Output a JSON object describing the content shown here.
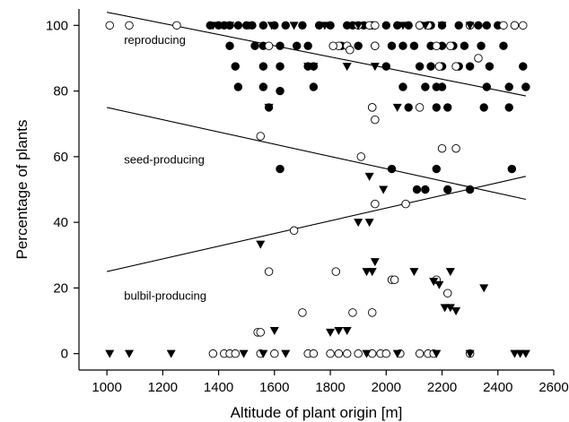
{
  "chart_data": {
    "type": "scatter",
    "title": "",
    "xlabel": "Altitude of plant origin [m]",
    "ylabel": "Percentage of plants",
    "xlim": [
      900,
      2600
    ],
    "ylim": [
      -5,
      105
    ],
    "xticks": [
      1000,
      1200,
      1400,
      1600,
      1800,
      2000,
      2200,
      2400,
      2600
    ],
    "yticks": [
      0,
      20,
      40,
      60,
      80,
      100
    ],
    "grid": false,
    "legend": "none",
    "series": [
      {
        "marker": "filled-circle",
        "color": "#000000",
        "x": [
          1370,
          1400,
          1420,
          1440,
          1470,
          1500,
          1520,
          1560,
          1600,
          1640,
          1700,
          1760,
          1800,
          1860,
          1880,
          1920,
          1950,
          2000,
          2040,
          2080,
          2120,
          2160,
          2200,
          2260,
          2300,
          2330,
          2360,
          2400,
          2460,
          1440,
          1530,
          1560,
          1620,
          1680,
          1720,
          1840,
          1900,
          1960,
          2020,
          2060,
          2100,
          2160,
          2200,
          2240,
          2280,
          2340,
          2420,
          1460,
          1560,
          1620,
          1720,
          1740,
          2000,
          2120,
          2160,
          2200,
          2260,
          2300,
          2370,
          2490,
          1470,
          1560,
          1620,
          1740,
          2060,
          2140,
          2180,
          2200,
          2360,
          2440,
          2500,
          1580,
          2080,
          2180,
          2220,
          2350,
          2440,
          1620,
          2020,
          2110,
          2140,
          2180,
          2220,
          2300,
          2450
        ],
        "y": [
          100,
          100,
          100,
          100,
          100,
          100,
          100,
          100,
          100,
          100,
          100,
          100,
          100,
          100,
          100,
          100,
          100,
          100,
          100,
          100,
          100,
          100,
          100,
          100,
          100,
          100,
          100,
          100,
          100,
          93.75,
          93.75,
          93.75,
          93.75,
          93.75,
          93.75,
          93.75,
          93.75,
          93.75,
          93.75,
          93.75,
          93.75,
          93.75,
          93.75,
          93.75,
          93.75,
          93.75,
          93.75,
          87.5,
          87.5,
          87.5,
          87.5,
          87.5,
          87.5,
          87.5,
          87.5,
          87.5,
          87.5,
          87.5,
          87.5,
          87.5,
          81.25,
          81.25,
          80,
          81.25,
          81.25,
          81.25,
          81.25,
          81.25,
          81.25,
          81.25,
          81.25,
          75,
          75,
          75,
          75,
          75,
          75,
          56.25,
          56.25,
          50,
          50,
          56.25,
          50,
          50,
          56.25
        ]
      },
      {
        "marker": "open-circle",
        "color": "#000000",
        "x": [
          1010,
          1080,
          1250,
          1900,
          1940,
          1960,
          2120,
          2150,
          2300,
          2420,
          2460,
          2490,
          1580,
          1830,
          1860,
          1870,
          1960,
          2180,
          2230,
          1810,
          2330,
          2190,
          2250,
          1950,
          1950,
          1960,
          2120,
          2250,
          1550,
          1910,
          2200,
          1960,
          1670,
          2070,
          1580,
          1820,
          2020,
          2030,
          2180,
          2220,
          1700,
          1880,
          1950,
          1540,
          1550,
          1380,
          1420,
          1440,
          1460,
          1550,
          1600,
          1720,
          1740,
          1800,
          1830,
          1860,
          1900,
          1950,
          1980,
          2000,
          2050,
          2120,
          2150,
          2170,
          2300
        ],
        "y": [
          100,
          100,
          100,
          100,
          100,
          100,
          100,
          100,
          100,
          100,
          100,
          100,
          93.75,
          93.75,
          93.75,
          92.5,
          93.75,
          93.75,
          93.75,
          93.75,
          90,
          87.5,
          87.5,
          75,
          75,
          71.25,
          75,
          62.5,
          66.25,
          60,
          62.5,
          45.6,
          37.5,
          45.6,
          25,
          25,
          22.5,
          22.5,
          22.5,
          18.4,
          12.5,
          12.5,
          12.5,
          6.5,
          6.5,
          0,
          0,
          0,
          0,
          0,
          0,
          0,
          0,
          0,
          0,
          0,
          0,
          0,
          0,
          0,
          0,
          0,
          0,
          0,
          0
        ]
      },
      {
        "marker": "filled-triangle-down",
        "color": "#000000",
        "x": [
          1380,
          1440,
          1510,
          1590,
          1670,
          1780,
          1900,
          2060,
          2140,
          2200,
          2300,
          1720,
          1740,
          1860,
          1960,
          1580,
          2040,
          1940,
          1990,
          1900,
          1550,
          1940,
          1960,
          2100,
          2230,
          1930,
          1950,
          2170,
          2190,
          2210,
          2230,
          2250,
          2350,
          1600,
          1800,
          1830,
          1860,
          1010,
          1080,
          1230,
          1490,
          1560,
          1640,
          1930,
          2040,
          2180,
          2300,
          2460,
          2480,
          2500
        ],
        "y": [
          100,
          100,
          100,
          100,
          100,
          100,
          100,
          100,
          100,
          100,
          100,
          87.5,
          87.5,
          87.5,
          87.5,
          75,
          75,
          54,
          50,
          40,
          33.3,
          40,
          28,
          25,
          25,
          25,
          25,
          22,
          21,
          14,
          14,
          13,
          20,
          7,
          6.5,
          7,
          7,
          0,
          0,
          0,
          0,
          0,
          0,
          0,
          0,
          0,
          0,
          0,
          0,
          0
        ]
      }
    ],
    "trend_lines": [
      {
        "x": [
          1000,
          2500
        ],
        "y": [
          104,
          78.5
        ]
      },
      {
        "x": [
          1000,
          2500
        ],
        "y": [
          75,
          47
        ]
      },
      {
        "x": [
          1000,
          2500
        ],
        "y": [
          25,
          54
        ]
      }
    ],
    "annotations": [
      {
        "text": "reproducing",
        "x": 1010,
        "y": 95.5
      },
      {
        "text": "seed-producing",
        "x": 1010,
        "y": 59
      },
      {
        "text": "bulbil-producing",
        "x": 1010,
        "y": 17.5
      }
    ]
  }
}
